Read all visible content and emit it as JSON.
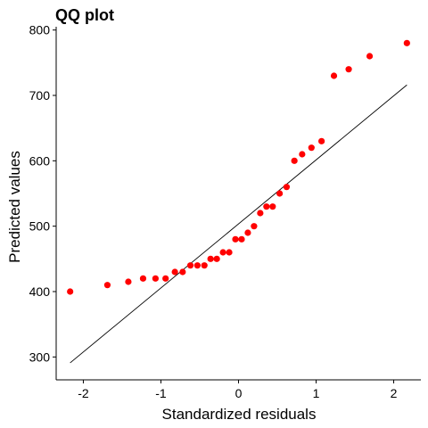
{
  "chart_data": {
    "type": "scatter",
    "title": "QQ plot",
    "xlabel": "Standardized residuals",
    "ylabel": "Predicted values",
    "xlim": [
      -2.35,
      2.35
    ],
    "ylim": [
      265,
      805
    ],
    "x_ticks": [
      -2,
      -1,
      0,
      1,
      2
    ],
    "y_ticks": [
      300,
      400,
      500,
      600,
      700,
      800
    ],
    "grid": false,
    "legend": "none",
    "point_color": "#ff0000",
    "line_color": "#000000",
    "reference_line": {
      "x": [
        -2.17,
        2.17
      ],
      "y": [
        291,
        716
      ]
    },
    "points": [
      {
        "x": -2.17,
        "y": 400
      },
      {
        "x": -1.69,
        "y": 410
      },
      {
        "x": -1.42,
        "y": 415
      },
      {
        "x": -1.23,
        "y": 420
      },
      {
        "x": -1.07,
        "y": 420
      },
      {
        "x": -0.94,
        "y": 420
      },
      {
        "x": -0.82,
        "y": 430
      },
      {
        "x": -0.72,
        "y": 430
      },
      {
        "x": -0.62,
        "y": 440
      },
      {
        "x": -0.53,
        "y": 440
      },
      {
        "x": -0.44,
        "y": 440
      },
      {
        "x": -0.36,
        "y": 450
      },
      {
        "x": -0.28,
        "y": 450
      },
      {
        "x": -0.2,
        "y": 460
      },
      {
        "x": -0.12,
        "y": 460
      },
      {
        "x": -0.04,
        "y": 480
      },
      {
        "x": 0.04,
        "y": 480
      },
      {
        "x": 0.12,
        "y": 490
      },
      {
        "x": 0.2,
        "y": 500
      },
      {
        "x": 0.28,
        "y": 520
      },
      {
        "x": 0.36,
        "y": 530
      },
      {
        "x": 0.44,
        "y": 530
      },
      {
        "x": 0.53,
        "y": 550
      },
      {
        "x": 0.62,
        "y": 560
      },
      {
        "x": 0.72,
        "y": 600
      },
      {
        "x": 0.82,
        "y": 610
      },
      {
        "x": 0.94,
        "y": 620
      },
      {
        "x": 1.07,
        "y": 630
      },
      {
        "x": 1.23,
        "y": 730
      },
      {
        "x": 1.42,
        "y": 740
      },
      {
        "x": 1.69,
        "y": 760
      },
      {
        "x": 2.17,
        "y": 780
      }
    ]
  }
}
